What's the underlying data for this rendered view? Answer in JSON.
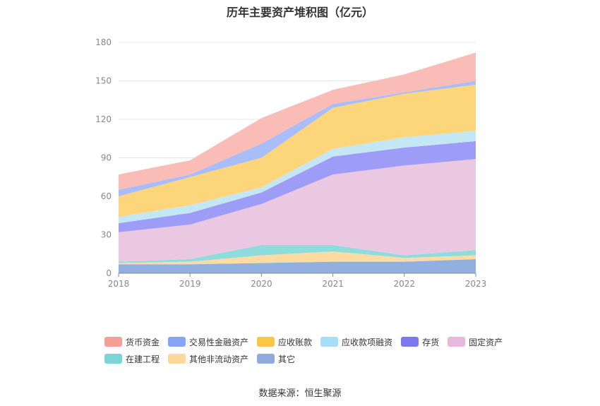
{
  "chart_data": {
    "type": "area",
    "stacked": true,
    "title": "历年主要资产堆积图（亿元）",
    "categories": [
      "2018",
      "2019",
      "2020",
      "2021",
      "2022",
      "2023"
    ],
    "ylim": [
      0,
      180
    ],
    "yticks": [
      0,
      30,
      60,
      90,
      120,
      150,
      180
    ],
    "grid": true,
    "legend_position": "bottom",
    "series": [
      {
        "name": "其它",
        "color": "#92b0df",
        "values": [
          7,
          7,
          8,
          9,
          9,
          11
        ]
      },
      {
        "name": "其他非流动资产",
        "color": "#fddba3",
        "values": [
          1,
          2,
          6,
          8,
          3,
          3
        ]
      },
      {
        "name": "在建工程",
        "color": "#8fdcdc",
        "values": [
          1,
          2,
          8,
          5,
          2,
          4
        ]
      },
      {
        "name": "固定资产",
        "color": "#ebc8e2",
        "values": [
          23,
          27,
          32,
          55,
          70,
          71
        ]
      },
      {
        "name": "存货",
        "color": "#9d9cf6",
        "values": [
          7,
          9,
          9,
          14,
          14,
          14
        ]
      },
      {
        "name": "应收款项融资",
        "color": "#c4e7f6",
        "values": [
          5,
          6,
          4,
          6,
          8,
          8
        ]
      },
      {
        "name": "应收账款",
        "color": "#fdd67c",
        "values": [
          16,
          22,
          23,
          32,
          34,
          36
        ]
      },
      {
        "name": "交易性金融资产",
        "color": "#a8bdf9",
        "values": [
          5,
          2,
          11,
          3,
          1,
          3
        ]
      },
      {
        "name": "货币资金",
        "color": "#f9bcb6",
        "values": [
          12,
          11,
          20,
          11,
          14,
          22
        ]
      }
    ]
  },
  "legend": {
    "row1": [
      {
        "label": "货币资金",
        "color": "#f59f98"
      },
      {
        "label": "交易性金融资产",
        "color": "#87a5f7"
      },
      {
        "label": "应收账款",
        "color": "#fbc548"
      },
      {
        "label": "应收款项融资",
        "color": "#a6def8"
      },
      {
        "label": "存货",
        "color": "#7c79ef"
      },
      {
        "label": "固定资产",
        "color": "#e8b8dc"
      }
    ],
    "row2": [
      {
        "label": "在建工程",
        "color": "#7ad6d6"
      },
      {
        "label": "其他非流动资产",
        "color": "#fdd89a"
      },
      {
        "label": "其它",
        "color": "#8eabdb"
      }
    ]
  },
  "source_note": "数据来源：恒生聚源"
}
